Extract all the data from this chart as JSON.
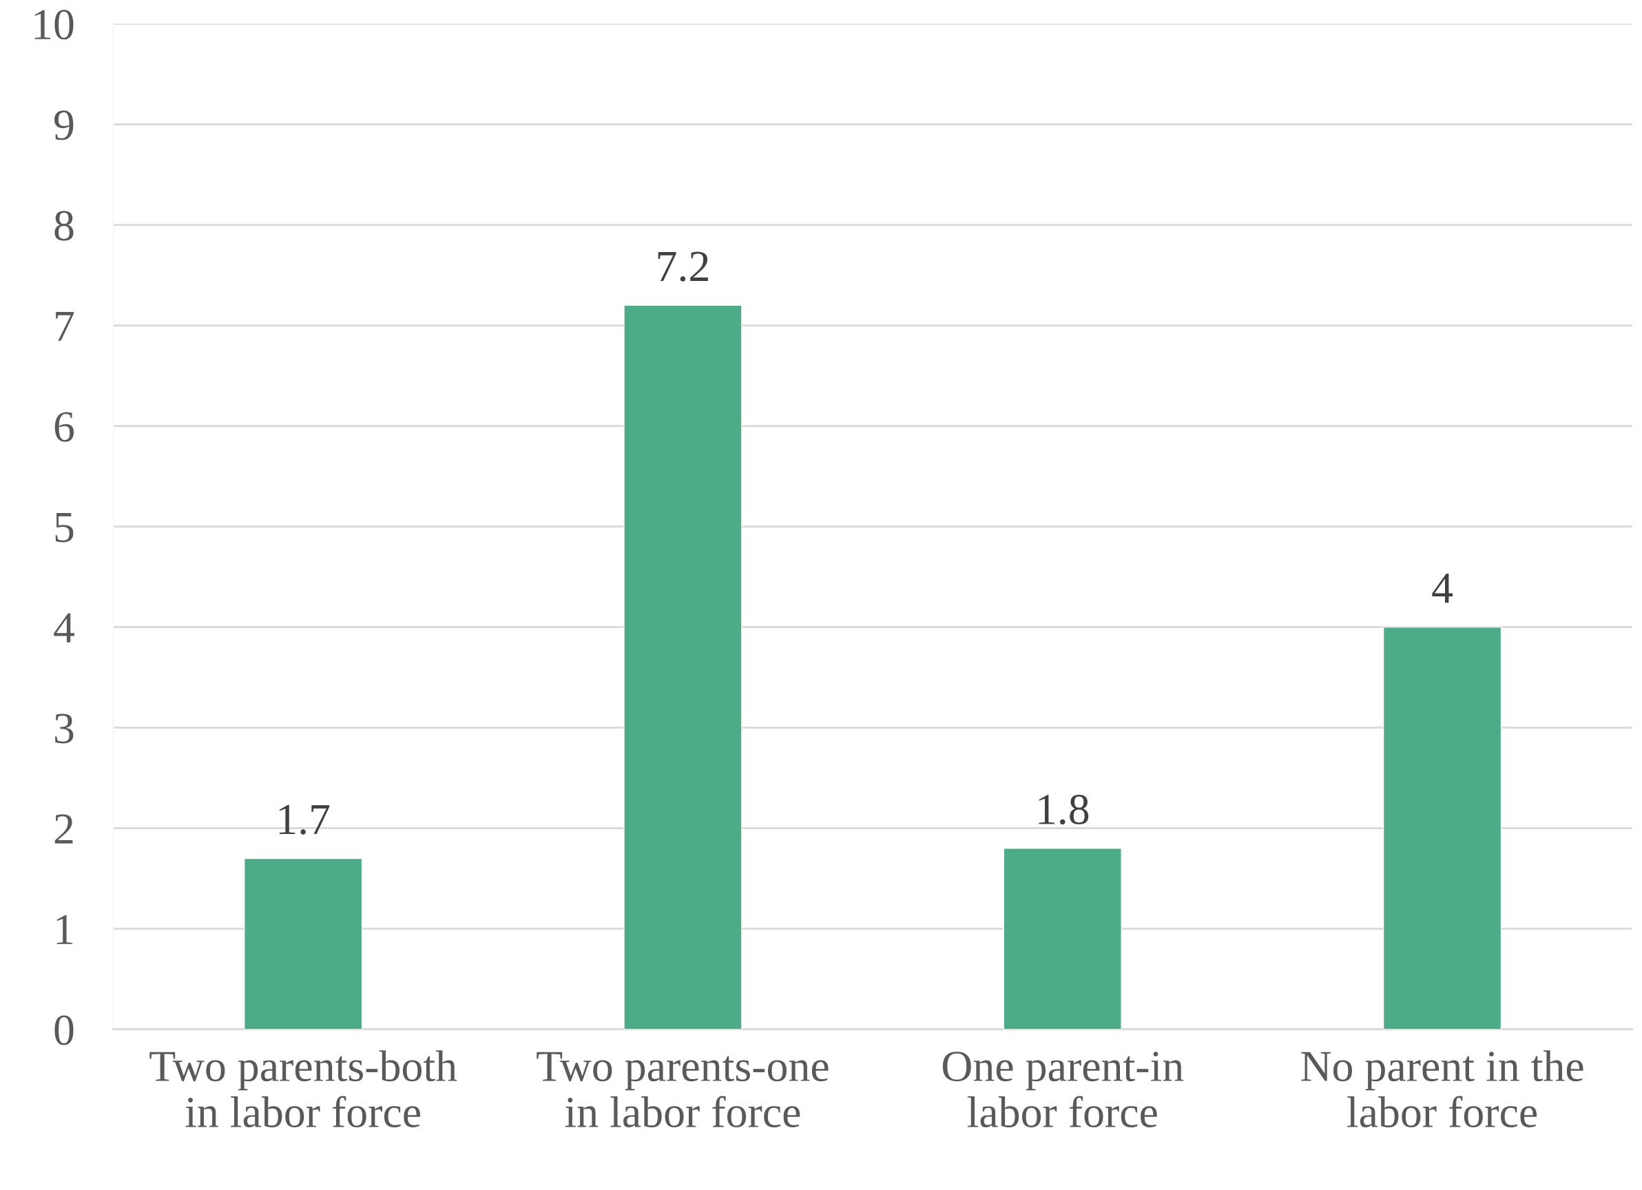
{
  "chart_data": {
    "type": "bar",
    "categories": [
      "Two parents-both\nin labor force",
      "Two parents-one\nin labor force",
      "One parent-in\nlabor force",
      "No parent in the\nlabor force"
    ],
    "values": [
      1.7,
      7.2,
      1.8,
      4
    ],
    "color": "#4dac88",
    "ylim": [
      0,
      10
    ],
    "yticks": [
      0,
      1,
      2,
      3,
      4,
      5,
      6,
      7,
      8,
      9,
      10
    ],
    "grid": "y",
    "data_labels": true,
    "legend": false
  }
}
